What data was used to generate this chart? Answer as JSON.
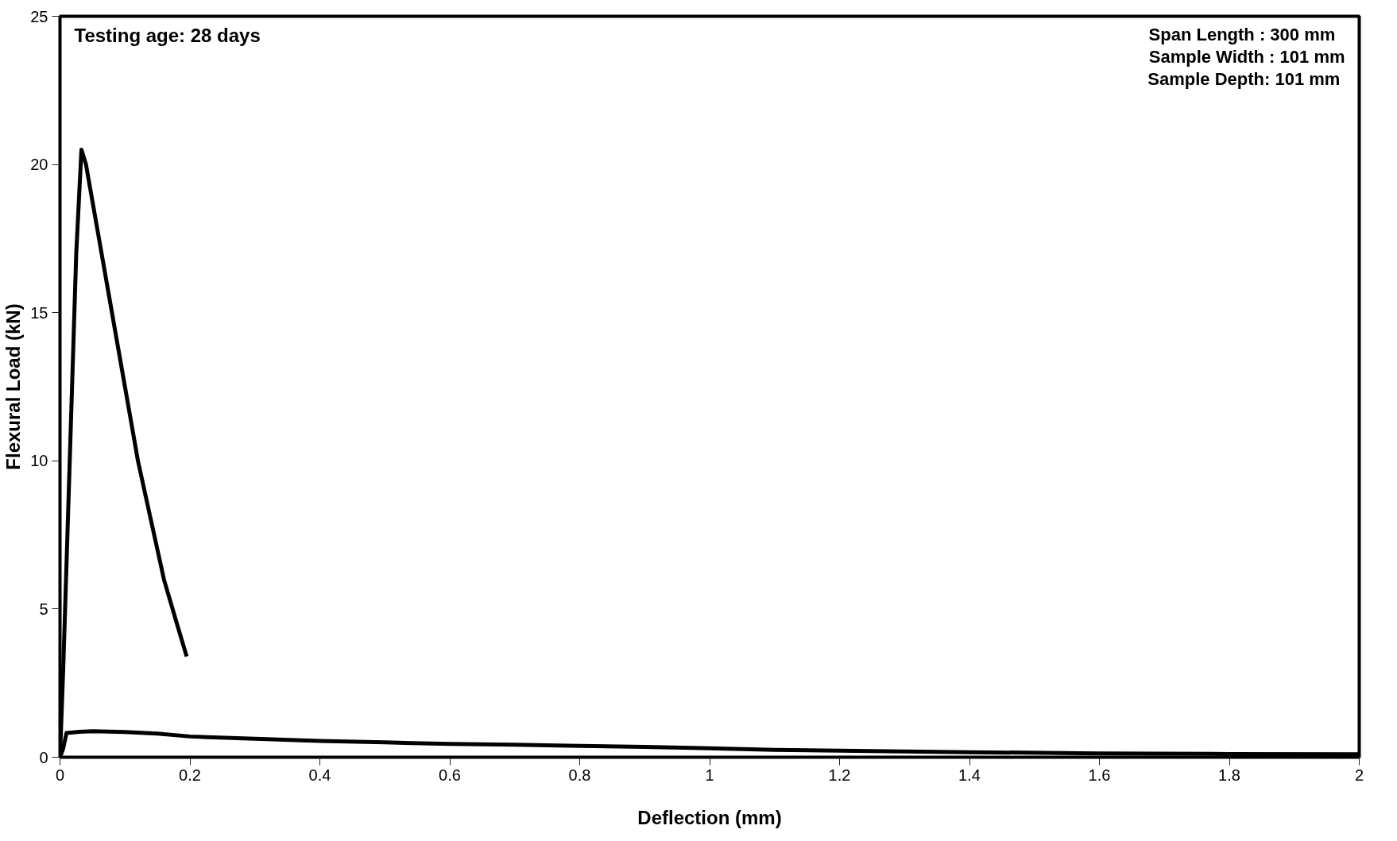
{
  "chart_data": {
    "type": "line",
    "xlabel": "Deflection (mm)",
    "ylabel": "Flexural Load (kN)",
    "annotations": [
      "Testing age: 28 days",
      "Span   Length : 300 mm",
      "Sample Width : 101 mm",
      "Sample Depth:  101 mm"
    ],
    "series": [
      {
        "color": "#000000",
        "x": [
          0,
          0.005,
          0.015,
          0.025,
          0.033,
          0.04,
          0.06,
          0.08,
          0.1,
          0.12,
          0.14,
          0.16,
          0.18,
          0.195
        ],
        "values": [
          0,
          3,
          10,
          17,
          20.5,
          20,
          17.5,
          15,
          12.5,
          10,
          8,
          6,
          4.5,
          3.4
        ]
      },
      {
        "color": "#000000",
        "x": [
          0,
          0.005,
          0.01,
          0.03,
          0.05,
          0.1,
          0.15,
          0.2,
          0.3,
          0.4,
          0.5,
          0.6,
          0.7,
          0.8,
          0.9,
          1.0,
          1.1,
          1.2,
          1.4,
          1.6,
          1.8,
          2.0
        ],
        "values": [
          0,
          0.3,
          0.82,
          0.86,
          0.88,
          0.85,
          0.8,
          0.7,
          0.62,
          0.55,
          0.5,
          0.45,
          0.42,
          0.38,
          0.35,
          0.3,
          0.25,
          0.22,
          0.17,
          0.13,
          0.11,
          0.1
        ]
      }
    ],
    "xlim": [
      0,
      2
    ],
    "xticks": [
      0,
      0.2,
      0.4,
      0.6,
      0.8,
      1,
      1.2,
      1.4,
      1.6,
      1.8,
      2
    ],
    "ylim": [
      0,
      25
    ],
    "yticks": [
      0,
      5,
      10,
      15,
      20,
      25
    ],
    "line_style": "solid"
  }
}
